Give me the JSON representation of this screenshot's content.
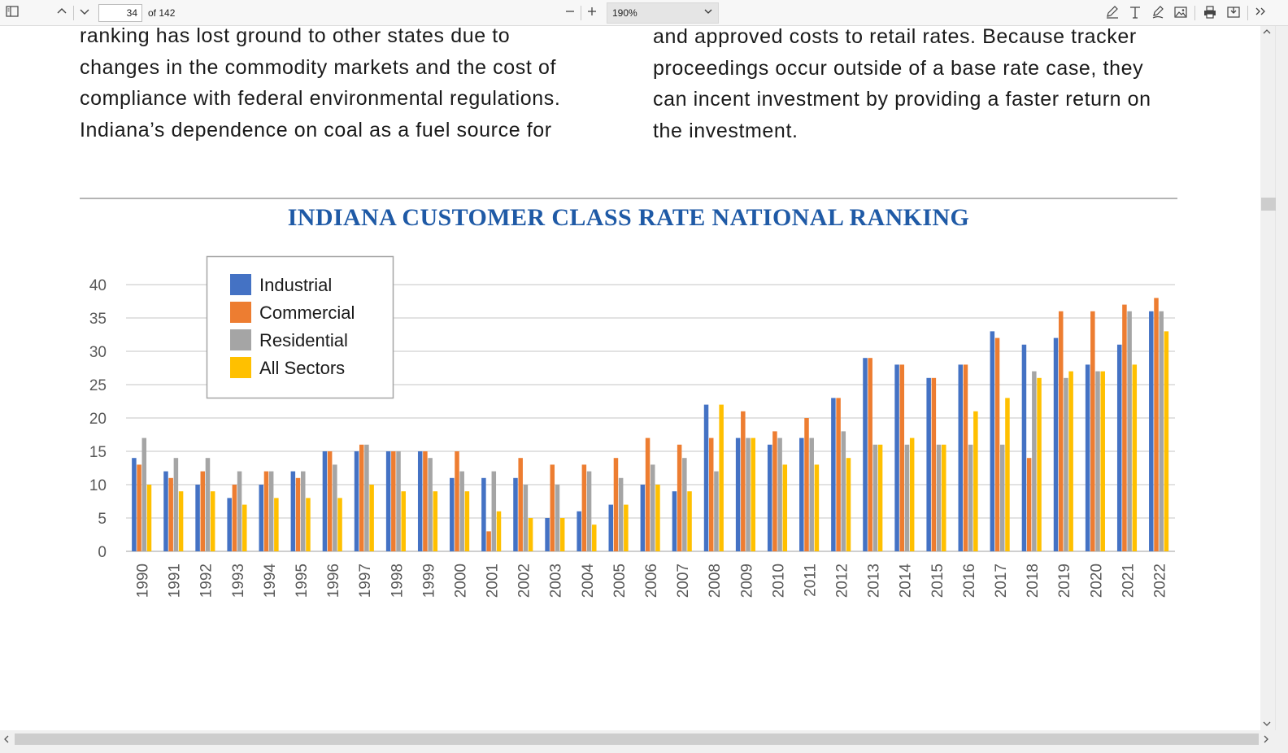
{
  "toolbar": {
    "page_number": "34",
    "page_total": "of 142",
    "zoom": "190%",
    "icons": [
      "sidebar-toggle-icon",
      "chevron-up-icon",
      "chevron-down-icon",
      "minus-icon",
      "plus-icon",
      "draw-icon",
      "text-icon",
      "highlight-icon",
      "image-icon",
      "print-icon",
      "save-icon",
      "more-icon"
    ]
  },
  "document": {
    "left_column": [
      "ranking has lost ground to other states due to",
      "changes in the commodity markets and the cost of",
      "compliance with federal environmental regulations.",
      "Indiana’s dependence on coal as a fuel source for"
    ],
    "right_column": [
      "and approved costs to retail rates. Because tracker",
      "proceedings occur outside of a base rate case, they",
      "can incent investment by providing a faster return on",
      "the investment."
    ]
  },
  "chart_data": {
    "type": "bar",
    "title": "INDIANA CUSTOMER CLASS RATE NATIONAL RANKING",
    "xlabel": "",
    "ylabel": "",
    "ylim": [
      0,
      40
    ],
    "yticks": [
      0,
      5,
      10,
      15,
      20,
      25,
      30,
      35,
      40
    ],
    "grid": true,
    "legend_position": "top-left",
    "categories": [
      "1990",
      "1991",
      "1992",
      "1993",
      "1994",
      "1995",
      "1996",
      "1997",
      "1998",
      "1999",
      "2000",
      "2001",
      "2002",
      "2003",
      "2004",
      "2005",
      "2006",
      "2007",
      "2008",
      "2009",
      "2010",
      "2011",
      "2012",
      "2013",
      "2014",
      "2015",
      "2016",
      "2017",
      "2018",
      "2019",
      "2020",
      "2021",
      "2022"
    ],
    "series": [
      {
        "name": "Industrial",
        "color": "#4472c4",
        "values": [
          14,
          12,
          10,
          8,
          10,
          12,
          15,
          15,
          15,
          15,
          11,
          11,
          11,
          5,
          6,
          7,
          10,
          9,
          22,
          17,
          16,
          17,
          23,
          29,
          28,
          26,
          28,
          33,
          31,
          32,
          28,
          31,
          36
        ]
      },
      {
        "name": "Commercial",
        "color": "#ed7d31",
        "values": [
          13,
          11,
          12,
          10,
          12,
          11,
          15,
          16,
          15,
          15,
          15,
          3,
          14,
          13,
          13,
          14,
          17,
          16,
          17,
          21,
          18,
          20,
          23,
          29,
          28,
          26,
          28,
          32,
          14,
          36,
          36,
          37,
          38
        ]
      },
      {
        "name": "Residential",
        "color": "#a5a5a5",
        "values": [
          17,
          14,
          14,
          12,
          12,
          12,
          13,
          16,
          15,
          14,
          12,
          12,
          10,
          10,
          12,
          11,
          13,
          14,
          12,
          17,
          17,
          17,
          18,
          16,
          16,
          16,
          16,
          16,
          27,
          26,
          27,
          36,
          36
        ]
      },
      {
        "name": "All Sectors",
        "color": "#ffc000",
        "values": [
          10,
          9,
          9,
          7,
          8,
          8,
          8,
          10,
          9,
          9,
          9,
          6,
          5,
          5,
          4,
          7,
          10,
          9,
          22,
          17,
          13,
          13,
          14,
          16,
          17,
          16,
          21,
          23,
          26,
          27,
          27,
          28,
          33
        ]
      }
    ]
  }
}
